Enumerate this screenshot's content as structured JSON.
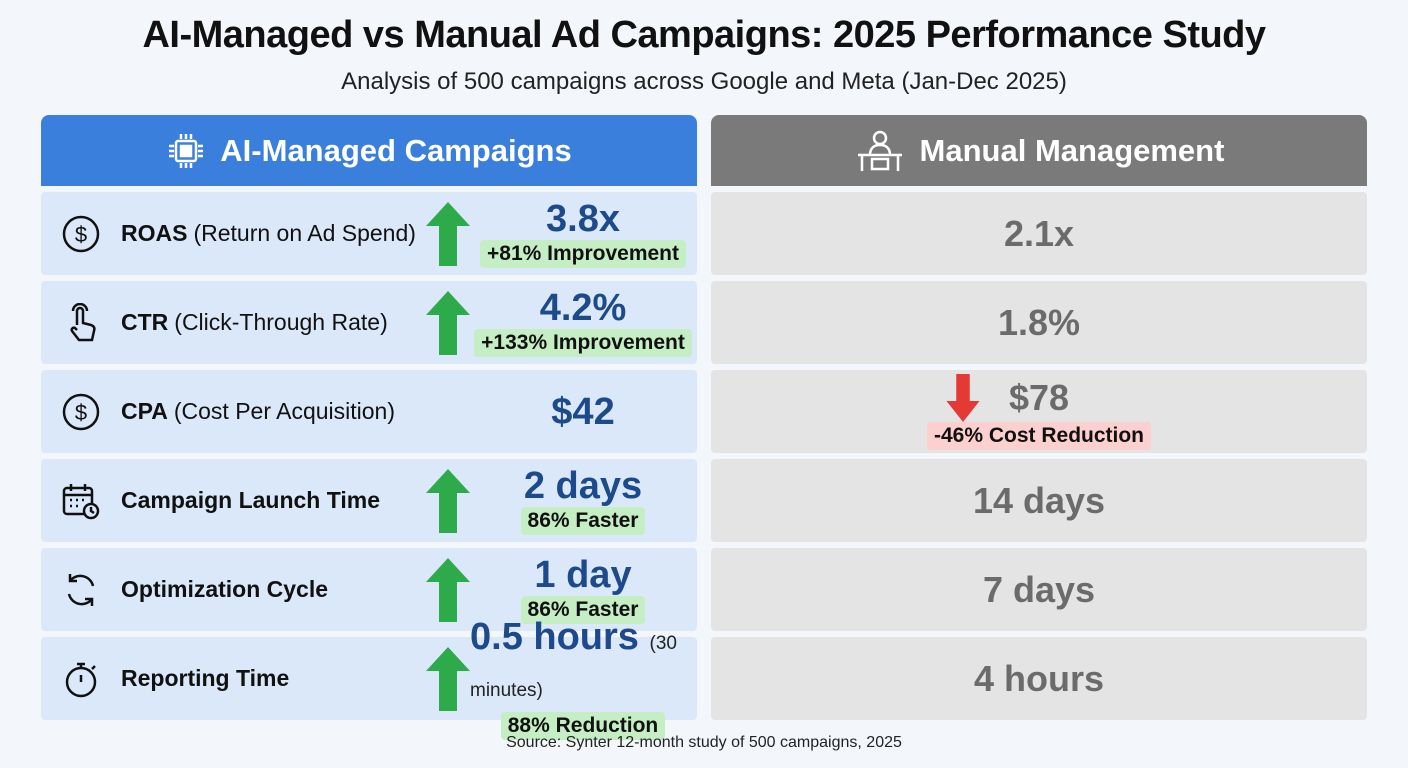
{
  "title": "AI-Managed vs Manual Ad Campaigns: 2025 Performance Study",
  "subtitle": "Analysis of 500 campaigns across Google and Meta (Jan-Dec 2025)",
  "colors": {
    "ai_header": "#3b7fdc",
    "manual_header": "#7a7a7a",
    "ai_value": "#1d4a8a",
    "improvement": "#2daa4a",
    "reduction": "#e53935"
  },
  "ai": {
    "header": "AI-Managed Campaigns",
    "icon": "chip-icon"
  },
  "manual": {
    "header": "Manual Management",
    "icon": "person-at-desk-icon"
  },
  "rows": [
    {
      "icon": "dollar-icon",
      "metric": "ROAS",
      "desc": "(Return on Ad Spend)",
      "ai_value": "3.8x",
      "ai_note": "",
      "ai_badge": "+81% Improvement",
      "manual_value": "2.1x",
      "manual_badge": ""
    },
    {
      "icon": "pointer-hand-icon",
      "metric": "CTR",
      "desc": "(Click-Through Rate)",
      "ai_value": "4.2%",
      "ai_note": "",
      "ai_badge": "+133% Improvement",
      "manual_value": "1.8%",
      "manual_badge": ""
    },
    {
      "icon": "dollar-icon",
      "metric": "CPA",
      "desc": "(Cost Per Acquisition)",
      "ai_value": "$42",
      "ai_note": "",
      "ai_badge": "",
      "manual_value": "$78",
      "manual_badge": "-46% Cost Reduction"
    },
    {
      "icon": "calendar-clock-icon",
      "metric": "Campaign Launch Time",
      "desc": "",
      "ai_value": "2 days",
      "ai_note": "",
      "ai_badge": "86% Faster",
      "manual_value": "14 days",
      "manual_badge": ""
    },
    {
      "icon": "refresh-icon",
      "metric": "Optimization Cycle",
      "desc": "",
      "ai_value": "1 day",
      "ai_note": "",
      "ai_badge": "86% Faster",
      "manual_value": "7 days",
      "manual_badge": ""
    },
    {
      "icon": "stopwatch-icon",
      "metric": "Reporting Time",
      "desc": "",
      "ai_value": "0.5 hours",
      "ai_note": "(30 minutes)",
      "ai_badge": "88% Reduction",
      "manual_value": "4 hours",
      "manual_badge": ""
    }
  ],
  "source": "Source: Synter 12-month study of 500 campaigns, 2025"
}
